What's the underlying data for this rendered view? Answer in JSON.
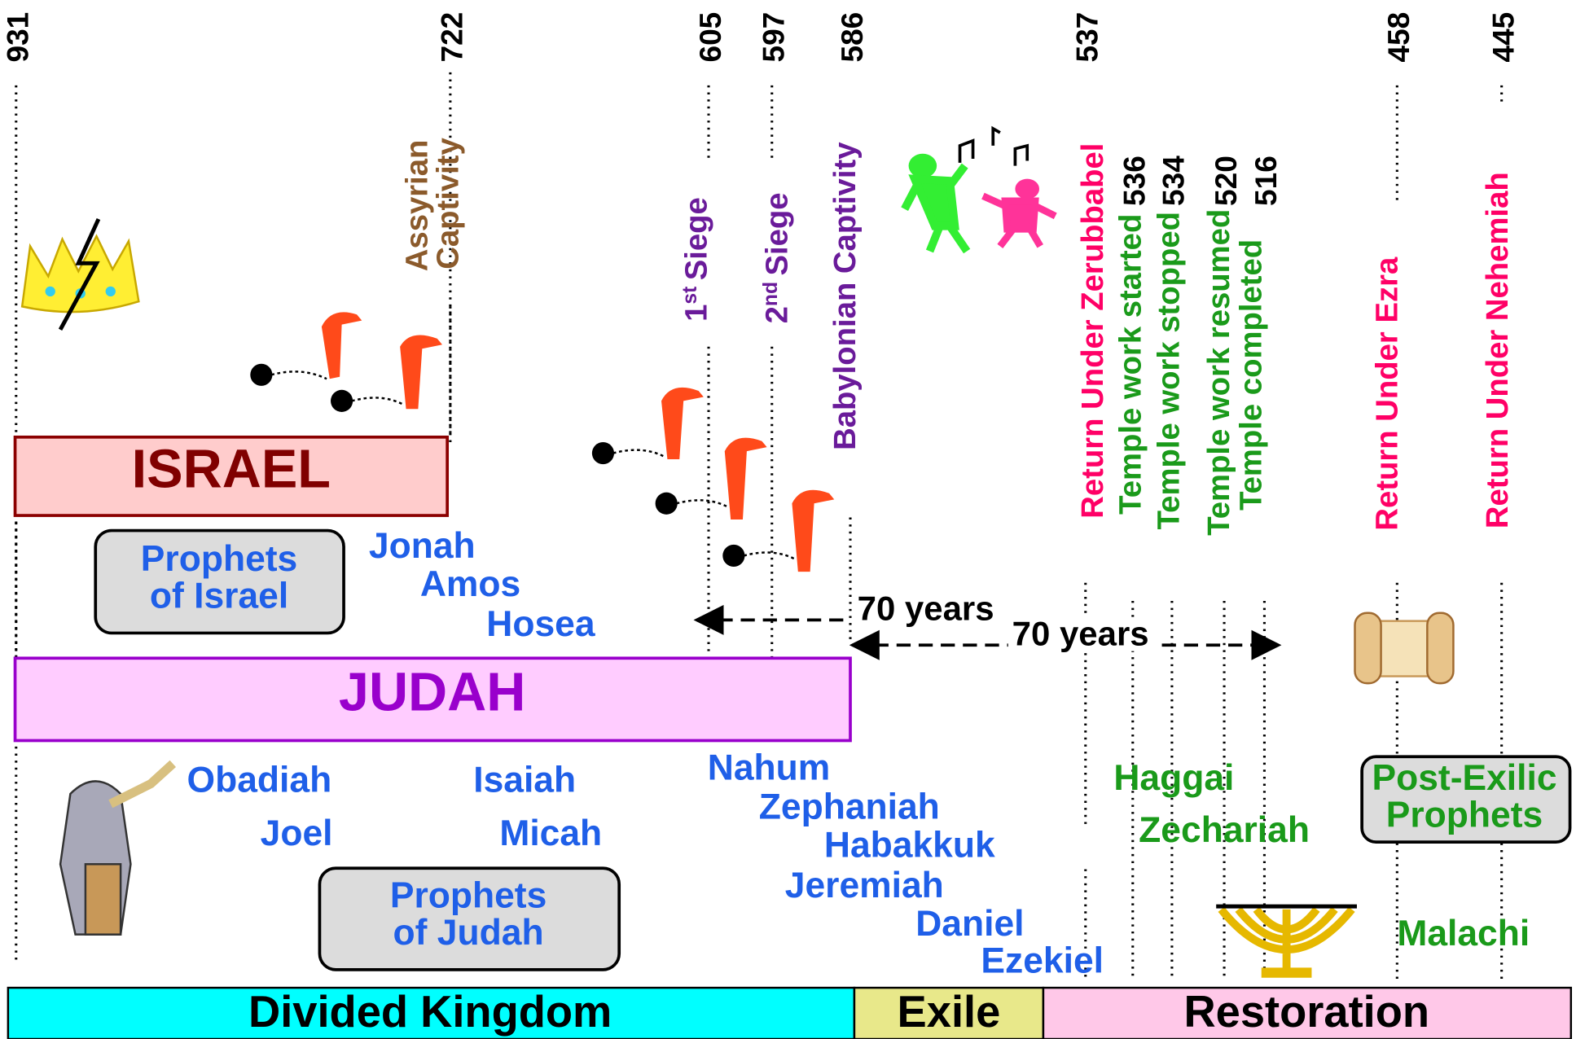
{
  "timeline": {
    "years": [
      "931",
      "722",
      "605",
      "597",
      "586",
      "537",
      "458",
      "445"
    ],
    "temple_years": [
      "536",
      "534",
      "520",
      "516"
    ],
    "events": {
      "assyrian_captivity": [
        "Assyrian",
        "Captivity"
      ],
      "first_siege": {
        "ordinal": "1",
        "suffix": "st",
        "label": "Siege"
      },
      "second_siege": {
        "ordinal": "2",
        "suffix": "nd",
        "label": "Siege"
      },
      "babylonian_captivity": "Babylonian Captivity",
      "return_zerubbabel": "Return Under Zerubbabel",
      "temple_started": "Temple work started",
      "temple_stopped": "Temple work stopped",
      "temple_resumed": "Temple work resumed",
      "temple_completed": "Temple completed",
      "return_ezra": "Return Under Ezra",
      "return_nehemiah": "Return Under Nehemiah"
    },
    "kingdoms": {
      "israel": "ISRAEL",
      "judah": "JUDAH"
    },
    "prophet_groups": {
      "israel": [
        "Prophets",
        "of Israel"
      ],
      "judah": [
        "Prophets",
        "of Judah"
      ],
      "post_exilic": [
        "Post-Exilic",
        "Prophets"
      ]
    },
    "prophets": {
      "israel": [
        "Jonah",
        "Amos",
        "Hosea"
      ],
      "judah": [
        "Obadiah",
        "Joel",
        "Isaiah",
        "Micah",
        "Nahum",
        "Zephaniah",
        "Habakkuk",
        "Jeremiah",
        "Daniel",
        "Ezekiel"
      ],
      "post_exilic": [
        "Haggai",
        "Zechariah",
        "Malachi"
      ]
    },
    "durations": [
      "70 years",
      "70 years"
    ],
    "periods": [
      "Divided Kingdom",
      "Exile",
      "Restoration"
    ]
  }
}
